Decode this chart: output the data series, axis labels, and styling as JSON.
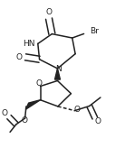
{
  "bg_color": "#ffffff",
  "line_color": "#222222",
  "line_width": 1.1,
  "font_size": 6.5,
  "figsize": [
    1.38,
    1.64
  ],
  "dpi": 100,
  "xlim": [
    0.0,
    1.0
  ],
  "ylim": [
    0.0,
    1.0
  ]
}
